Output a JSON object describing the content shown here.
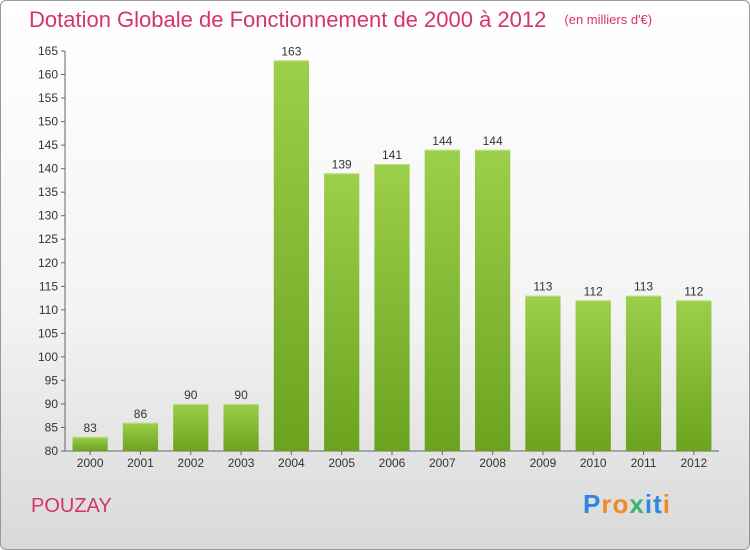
{
  "title": "Dotation Globale de Fonctionnement de 2000 à 2012",
  "unit": "(en milliers d'€)",
  "city": "POUZAY",
  "logo": {
    "letters": [
      "P",
      "r",
      "o",
      "x",
      "i",
      "t",
      "i"
    ],
    "colors": [
      "#2e86de",
      "#f08a24",
      "#f08a24",
      "#3cb371",
      "#2e86de",
      "#2e86de",
      "#f08a24"
    ]
  },
  "colors": {
    "bar_top": "#9ccf4a",
    "bar_bottom": "#6ba31f",
    "accent": "#d6336c"
  },
  "chart_data": {
    "type": "bar",
    "title": "Dotation Globale de Fonctionnement de 2000 à 2012",
    "subtitle": "(en milliers d'€)",
    "categories": [
      "2000",
      "2001",
      "2002",
      "2003",
      "2004",
      "2005",
      "2006",
      "2007",
      "2008",
      "2009",
      "2010",
      "2011",
      "2012"
    ],
    "values": [
      83,
      86,
      90,
      90,
      163,
      139,
      141,
      144,
      144,
      113,
      112,
      113,
      112
    ],
    "ylim": [
      80,
      165
    ],
    "yticks": [
      80,
      85,
      90,
      95,
      100,
      105,
      110,
      115,
      120,
      125,
      130,
      135,
      140,
      145,
      150,
      155,
      160,
      165
    ],
    "grid": false,
    "xlabel": "",
    "ylabel": ""
  }
}
